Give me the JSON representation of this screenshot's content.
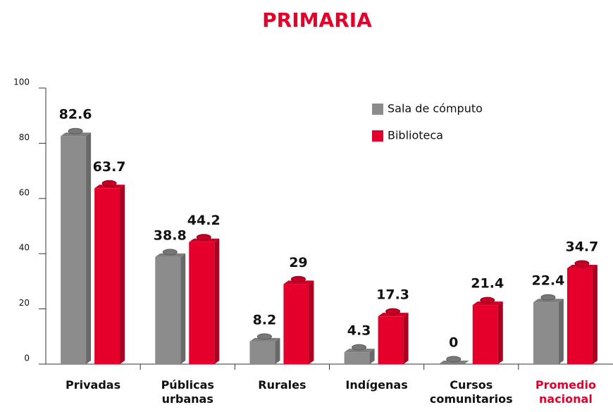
{
  "chart_data": {
    "type": "bar",
    "title": "PRIMARIA",
    "title_color": "#e4002b",
    "categories": [
      "Privadas",
      "Públicas urbanas",
      "Rurales",
      "Indígenas",
      "Cursos comunitarios",
      "Promedio nacional"
    ],
    "category_label_colors": [
      "#111111",
      "#111111",
      "#111111",
      "#111111",
      "#111111",
      "#e4002b"
    ],
    "series": [
      {
        "name": "Sala de cómputo",
        "color": "#8c8c8c",
        "values": [
          82.6,
          38.8,
          8.2,
          4.3,
          0,
          22.4
        ]
      },
      {
        "name": "Biblioteca",
        "color": "#e4002b",
        "values": [
          63.7,
          44.2,
          29,
          17.3,
          21.4,
          34.7
        ]
      }
    ],
    "ylim": [
      0,
      100
    ],
    "yticks": [
      0,
      20,
      40,
      60,
      80,
      100
    ],
    "legend": "upper right"
  }
}
